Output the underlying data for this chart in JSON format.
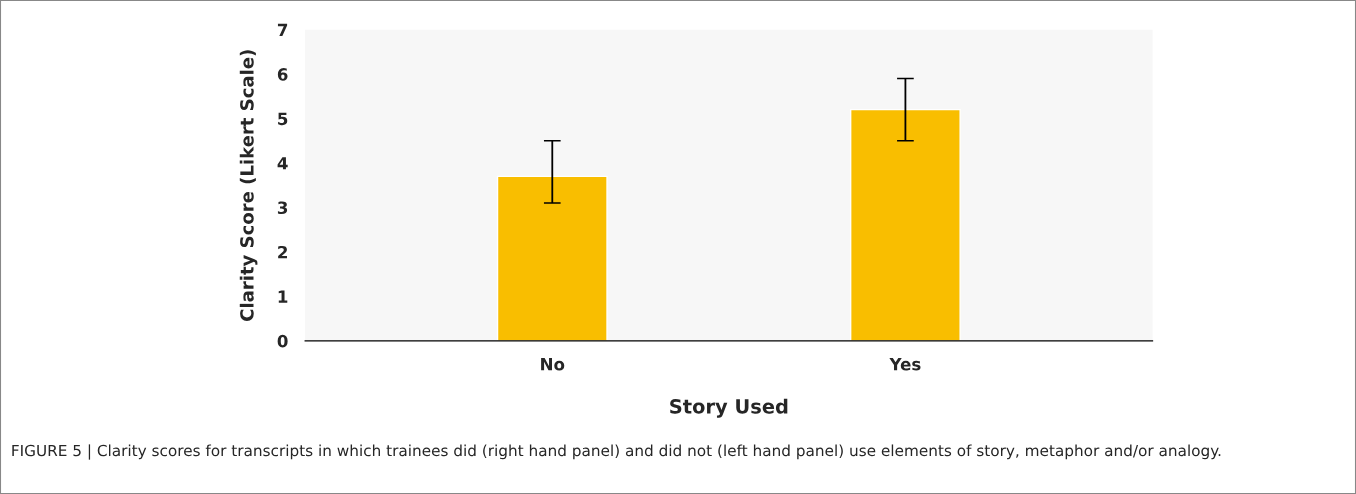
{
  "chart_data": {
    "type": "bar",
    "categories": [
      "No",
      "Yes"
    ],
    "values": [
      3.7,
      5.2
    ],
    "errors": [
      [
        3.1,
        4.5
      ],
      [
        4.5,
        5.9
      ]
    ],
    "color": "#f9be00",
    "xlabel": "Story Used",
    "ylabel": "Clarity Score (Likert Scale)",
    "ylim": [
      0,
      7
    ],
    "yticks": [
      0,
      1,
      2,
      3,
      4,
      5,
      6,
      7
    ],
    "grid": false,
    "legend": false,
    "annotations": [
      "FIGURE 5 | Clarity scores for transcripts in which trainees did (right hand panel) and did not (left hand panel) use elements of story, metaphor and/or analogy."
    ]
  }
}
